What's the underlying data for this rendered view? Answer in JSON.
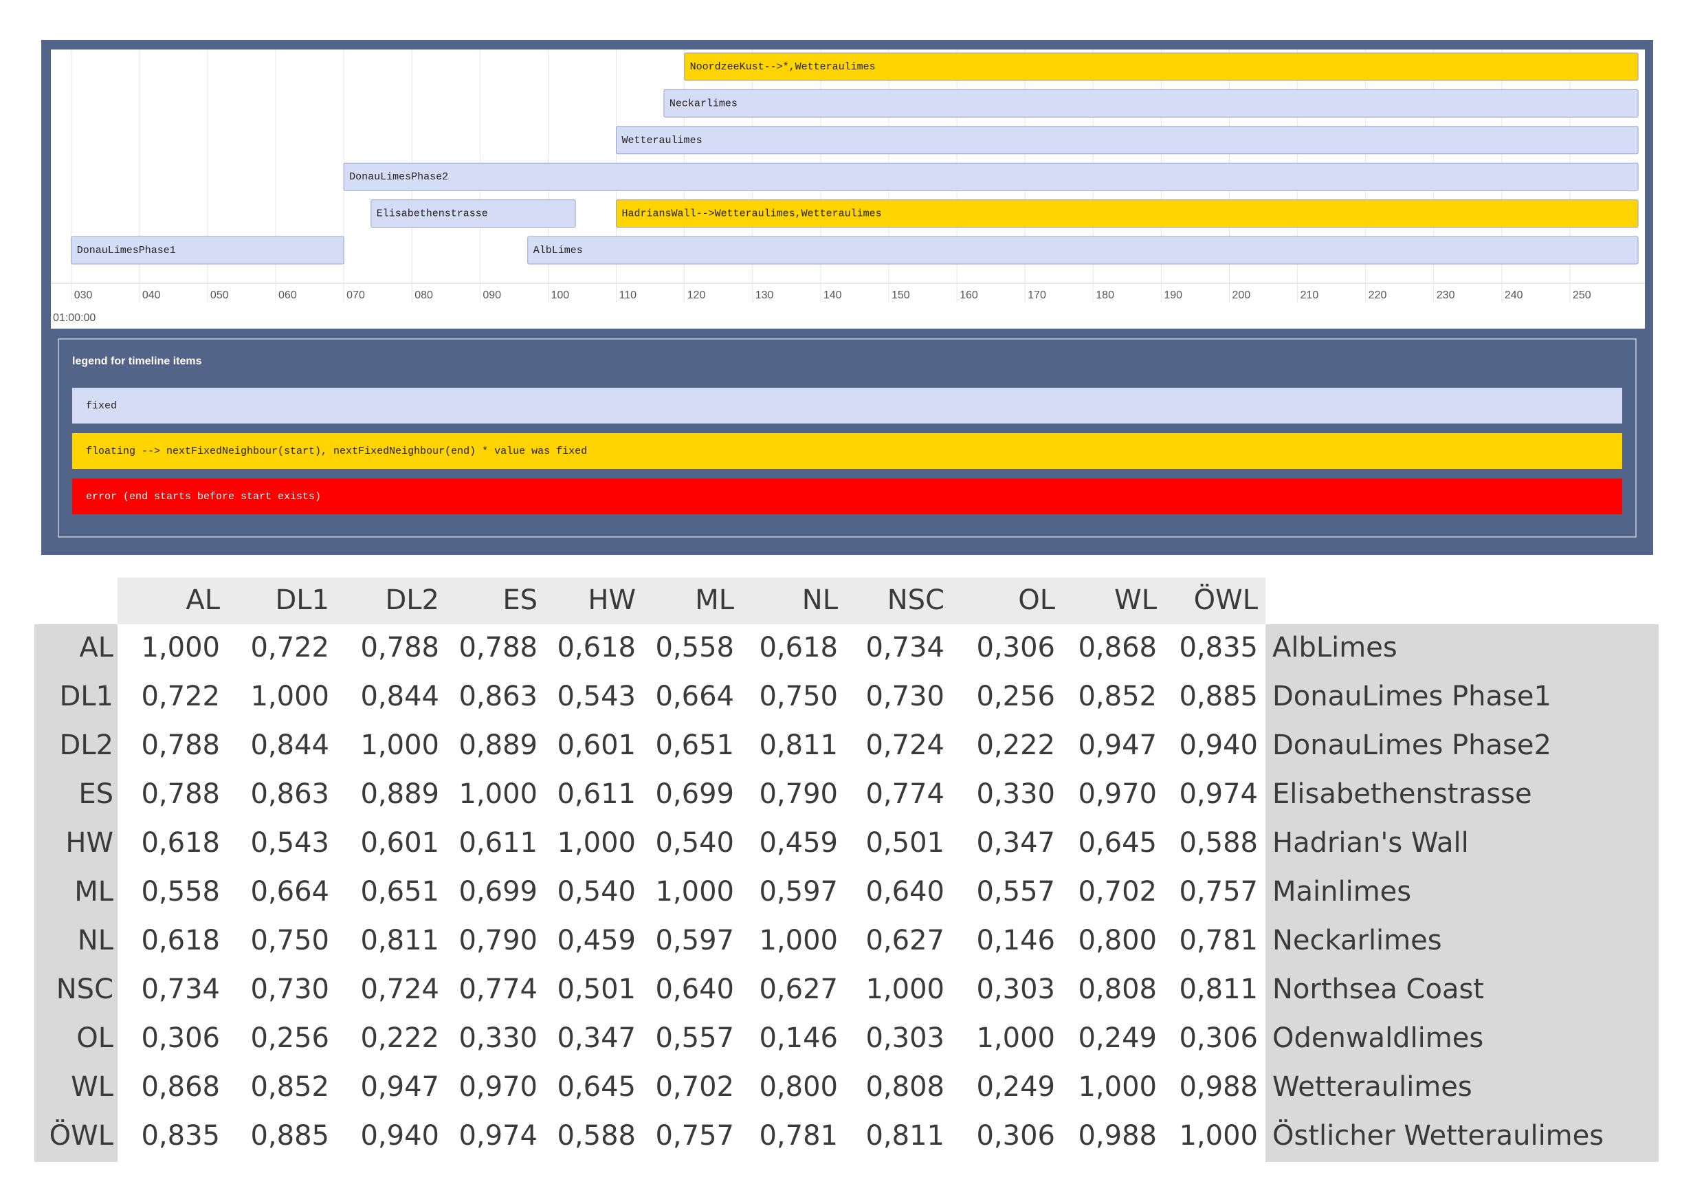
{
  "timeline": {
    "xlim": [
      27,
      261
    ],
    "date_label": "01:00:00",
    "ticks": [
      {
        "value": 30,
        "label": "030"
      },
      {
        "value": 40,
        "label": "040"
      },
      {
        "value": 50,
        "label": "050"
      },
      {
        "value": 60,
        "label": "060"
      },
      {
        "value": 70,
        "label": "070"
      },
      {
        "value": 80,
        "label": "080"
      },
      {
        "value": 90,
        "label": "090"
      },
      100,
      110,
      120,
      130,
      140,
      150,
      160,
      170,
      180,
      190,
      200,
      210,
      220,
      230,
      240,
      250
    ],
    "rows": [
      [
        {
          "label": "NoordzeeKust-->*,Wetteraulimes",
          "start": 120,
          "end": 260,
          "color": "#ffd400"
        }
      ],
      [
        {
          "label": "Neckarlimes",
          "start": 117,
          "end": 260,
          "color": "#d5dcf5"
        }
      ],
      [
        {
          "label": "Wetteraulimes",
          "start": 110,
          "end": 260,
          "color": "#d5dcf5"
        }
      ],
      [
        {
          "label": "DonauLimesPhase2",
          "start": 70,
          "end": 260,
          "color": "#d5dcf5"
        }
      ],
      [
        {
          "label": "Elisabethenstrasse",
          "start": 74,
          "end": 104,
          "color": "#d5dcf5"
        },
        {
          "label": "HadriansWall-->Wetteraulimes,Wetteraulimes",
          "start": 110,
          "end": 260,
          "color": "#ffd400"
        }
      ],
      [
        {
          "label": "DonauLimesPhase1",
          "start": 30,
          "end": 70,
          "color": "#d5dcf5"
        },
        {
          "label": "AlbLimes",
          "start": 97,
          "end": 260,
          "color": "#d5dcf5"
        }
      ]
    ]
  },
  "legend": {
    "title": "legend for timeline items",
    "items": [
      {
        "label": "fixed",
        "color": "#d5dcf5"
      },
      {
        "label": "floating --> nextFixedNeighbour(start), nextFixedNeighbour(end) * value was fixed",
        "color": "#ffd400"
      },
      {
        "label": "error (end starts before start exists)",
        "color": "#ff0000"
      }
    ]
  },
  "table": {
    "columns": [
      "AL",
      "DL1",
      "DL2",
      "ES",
      "HW",
      "ML",
      "NL",
      "NSC",
      "OL",
      "WL",
      "ÖWL"
    ],
    "rows": [
      {
        "label": "AL",
        "values": [
          "1,000",
          "0,722",
          "0,788",
          "0,788",
          "0,618",
          "0,558",
          "0,618",
          "0,734",
          "0,306",
          "0,868",
          "0,835"
        ],
        "name": "AlbLimes"
      },
      {
        "label": "DL1",
        "values": [
          "0,722",
          "1,000",
          "0,844",
          "0,863",
          "0,543",
          "0,664",
          "0,750",
          "0,730",
          "0,256",
          "0,852",
          "0,885"
        ],
        "name": "DonauLimes Phase1"
      },
      {
        "label": "DL2",
        "values": [
          "0,788",
          "0,844",
          "1,000",
          "0,889",
          "0,601",
          "0,651",
          "0,811",
          "0,724",
          "0,222",
          "0,947",
          "0,940"
        ],
        "name": "DonauLimes Phase2"
      },
      {
        "label": "ES",
        "values": [
          "0,788",
          "0,863",
          "0,889",
          "1,000",
          "0,611",
          "0,699",
          "0,790",
          "0,774",
          "0,330",
          "0,970",
          "0,974"
        ],
        "name": "Elisabethenstrasse"
      },
      {
        "label": "HW",
        "values": [
          "0,618",
          "0,543",
          "0,601",
          "0,611",
          "1,000",
          "0,540",
          "0,459",
          "0,501",
          "0,347",
          "0,645",
          "0,588"
        ],
        "name": "Hadrian's Wall"
      },
      {
        "label": "ML",
        "values": [
          "0,558",
          "0,664",
          "0,651",
          "0,699",
          "0,540",
          "1,000",
          "0,597",
          "0,640",
          "0,557",
          "0,702",
          "0,757"
        ],
        "name": "Mainlimes"
      },
      {
        "label": "NL",
        "values": [
          "0,618",
          "0,750",
          "0,811",
          "0,790",
          "0,459",
          "0,597",
          "1,000",
          "0,627",
          "0,146",
          "0,800",
          "0,781"
        ],
        "name": "Neckarlimes"
      },
      {
        "label": "NSC",
        "values": [
          "0,734",
          "0,730",
          "0,724",
          "0,774",
          "0,501",
          "0,640",
          "0,627",
          "1,000",
          "0,303",
          "0,808",
          "0,811"
        ],
        "name": "Northsea Coast"
      },
      {
        "label": "OL",
        "values": [
          "0,306",
          "0,256",
          "0,222",
          "0,330",
          "0,347",
          "0,557",
          "0,146",
          "0,303",
          "1,000",
          "0,249",
          "0,306"
        ],
        "name": "Odenwaldlimes"
      },
      {
        "label": "WL",
        "values": [
          "0,868",
          "0,852",
          "0,947",
          "0,970",
          "0,645",
          "0,702",
          "0,800",
          "0,808",
          "0,249",
          "1,000",
          "0,988"
        ],
        "name": "Wetteraulimes"
      },
      {
        "label": "ÖWL",
        "values": [
          "0,835",
          "0,885",
          "0,940",
          "0,974",
          "0,588",
          "0,757",
          "0,781",
          "0,811",
          "0,306",
          "0,988",
          "1,000"
        ],
        "name": "Östlicher Wetteraulimes"
      }
    ]
  }
}
